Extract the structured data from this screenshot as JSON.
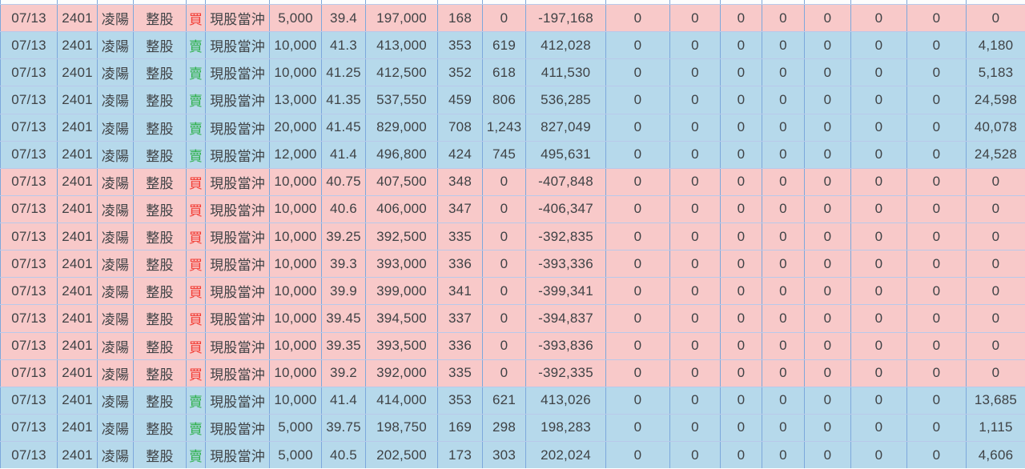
{
  "colors": {
    "buy_row_background": "#f8c9c9",
    "sell_row_background": "#b6d9eb",
    "buy_text": "#f23b33",
    "sell_text": "#2eb04b",
    "grid_line_vertical": "#7da8dc",
    "grid_line_horizontal": "#b9c9ea",
    "cell_text": "#3f4245"
  },
  "table": {
    "rows": [
      {
        "type": "buy",
        "cells": [
          "07/13",
          "2401",
          "凌陽",
          "整股",
          "買",
          "現股當沖",
          "5,000",
          "39.4",
          "197,000",
          "168",
          "0",
          "-197,168",
          "0",
          "0",
          "0",
          "0",
          "0",
          "0",
          "0",
          "0"
        ]
      },
      {
        "type": "sell",
        "cells": [
          "07/13",
          "2401",
          "凌陽",
          "整股",
          "賣",
          "現股當沖",
          "10,000",
          "41.3",
          "413,000",
          "353",
          "619",
          "412,028",
          "0",
          "0",
          "0",
          "0",
          "0",
          "0",
          "0",
          "4,180"
        ]
      },
      {
        "type": "sell",
        "cells": [
          "07/13",
          "2401",
          "凌陽",
          "整股",
          "賣",
          "現股當沖",
          "10,000",
          "41.25",
          "412,500",
          "352",
          "618",
          "411,530",
          "0",
          "0",
          "0",
          "0",
          "0",
          "0",
          "0",
          "5,183"
        ]
      },
      {
        "type": "sell",
        "cells": [
          "07/13",
          "2401",
          "凌陽",
          "整股",
          "賣",
          "現股當沖",
          "13,000",
          "41.35",
          "537,550",
          "459",
          "806",
          "536,285",
          "0",
          "0",
          "0",
          "0",
          "0",
          "0",
          "0",
          "24,598"
        ]
      },
      {
        "type": "sell",
        "cells": [
          "07/13",
          "2401",
          "凌陽",
          "整股",
          "賣",
          "現股當沖",
          "20,000",
          "41.45",
          "829,000",
          "708",
          "1,243",
          "827,049",
          "0",
          "0",
          "0",
          "0",
          "0",
          "0",
          "0",
          "40,078"
        ]
      },
      {
        "type": "sell",
        "cells": [
          "07/13",
          "2401",
          "凌陽",
          "整股",
          "賣",
          "現股當沖",
          "12,000",
          "41.4",
          "496,800",
          "424",
          "745",
          "495,631",
          "0",
          "0",
          "0",
          "0",
          "0",
          "0",
          "0",
          "24,528"
        ]
      },
      {
        "type": "buy",
        "cells": [
          "07/13",
          "2401",
          "凌陽",
          "整股",
          "買",
          "現股當沖",
          "10,000",
          "40.75",
          "407,500",
          "348",
          "0",
          "-407,848",
          "0",
          "0",
          "0",
          "0",
          "0",
          "0",
          "0",
          "0"
        ]
      },
      {
        "type": "buy",
        "cells": [
          "07/13",
          "2401",
          "凌陽",
          "整股",
          "買",
          "現股當沖",
          "10,000",
          "40.6",
          "406,000",
          "347",
          "0",
          "-406,347",
          "0",
          "0",
          "0",
          "0",
          "0",
          "0",
          "0",
          "0"
        ]
      },
      {
        "type": "buy",
        "cells": [
          "07/13",
          "2401",
          "凌陽",
          "整股",
          "買",
          "現股當沖",
          "10,000",
          "39.25",
          "392,500",
          "335",
          "0",
          "-392,835",
          "0",
          "0",
          "0",
          "0",
          "0",
          "0",
          "0",
          "0"
        ]
      },
      {
        "type": "buy",
        "cells": [
          "07/13",
          "2401",
          "凌陽",
          "整股",
          "買",
          "現股當沖",
          "10,000",
          "39.3",
          "393,000",
          "336",
          "0",
          "-393,336",
          "0",
          "0",
          "0",
          "0",
          "0",
          "0",
          "0",
          "0"
        ]
      },
      {
        "type": "buy",
        "cells": [
          "07/13",
          "2401",
          "凌陽",
          "整股",
          "買",
          "現股當沖",
          "10,000",
          "39.9",
          "399,000",
          "341",
          "0",
          "-399,341",
          "0",
          "0",
          "0",
          "0",
          "0",
          "0",
          "0",
          "0"
        ]
      },
      {
        "type": "buy",
        "cells": [
          "07/13",
          "2401",
          "凌陽",
          "整股",
          "買",
          "現股當沖",
          "10,000",
          "39.45",
          "394,500",
          "337",
          "0",
          "-394,837",
          "0",
          "0",
          "0",
          "0",
          "0",
          "0",
          "0",
          "0"
        ]
      },
      {
        "type": "buy",
        "cells": [
          "07/13",
          "2401",
          "凌陽",
          "整股",
          "買",
          "現股當沖",
          "10,000",
          "39.35",
          "393,500",
          "336",
          "0",
          "-393,836",
          "0",
          "0",
          "0",
          "0",
          "0",
          "0",
          "0",
          "0"
        ]
      },
      {
        "type": "buy",
        "cells": [
          "07/13",
          "2401",
          "凌陽",
          "整股",
          "買",
          "現股當沖",
          "10,000",
          "39.2",
          "392,000",
          "335",
          "0",
          "-392,335",
          "0",
          "0",
          "0",
          "0",
          "0",
          "0",
          "0",
          "0"
        ]
      },
      {
        "type": "sell",
        "cells": [
          "07/13",
          "2401",
          "凌陽",
          "整股",
          "賣",
          "現股當沖",
          "10,000",
          "41.4",
          "414,000",
          "353",
          "621",
          "413,026",
          "0",
          "0",
          "0",
          "0",
          "0",
          "0",
          "0",
          "13,685"
        ]
      },
      {
        "type": "sell",
        "cells": [
          "07/13",
          "2401",
          "凌陽",
          "整股",
          "賣",
          "現股當沖",
          "5,000",
          "39.75",
          "198,750",
          "169",
          "298",
          "198,283",
          "0",
          "0",
          "0",
          "0",
          "0",
          "0",
          "0",
          "1,115"
        ]
      },
      {
        "type": "sell",
        "cells": [
          "07/13",
          "2401",
          "凌陽",
          "整股",
          "賣",
          "現股當沖",
          "5,000",
          "40.5",
          "202,500",
          "173",
          "303",
          "202,024",
          "0",
          "0",
          "0",
          "0",
          "0",
          "0",
          "0",
          "4,606"
        ]
      }
    ]
  }
}
